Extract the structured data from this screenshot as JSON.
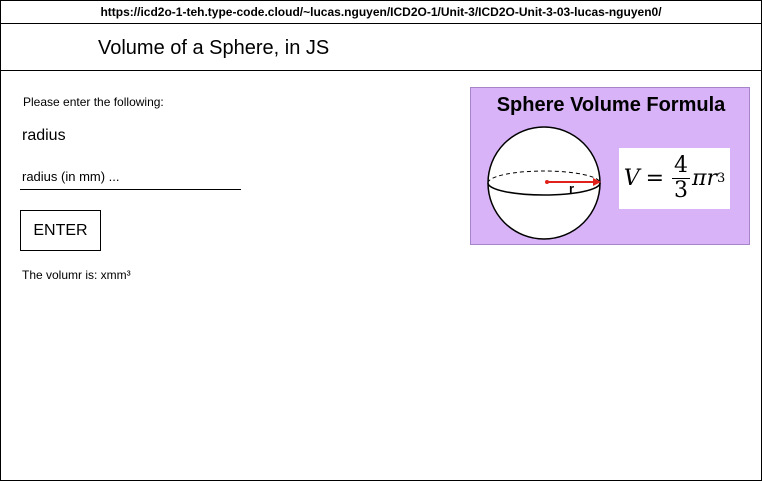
{
  "browser": {
    "url": "https://icd2o-1-teh.type-code.cloud/~lucas.nguyen/ICD2O-1/Unit-3/ICD2O-Unit-3-03-lucas-nguyen0/"
  },
  "header": {
    "title": "Volume of a Sphere, in JS"
  },
  "form": {
    "instructions": "Please enter the following:",
    "radius_label": "radius",
    "radius_placeholder": "radius (in mm) ...",
    "radius_value": "",
    "enter_label": "ENTER"
  },
  "result": {
    "text": "The volumr is: xmm³"
  },
  "formula_image": {
    "title": "Sphere Volume Formula",
    "radius_label": "r",
    "lhs": "V",
    "equals": "=",
    "numerator": "4",
    "denominator": "3",
    "pi": "π",
    "var": "r",
    "exponent": "3",
    "background_color": "#d9b3f7",
    "arrow_color": "#e0201b"
  }
}
